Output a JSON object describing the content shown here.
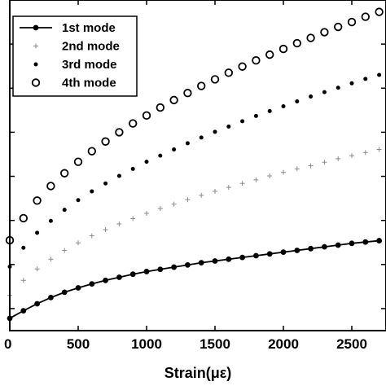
{
  "chart_data": {
    "type": "scatter",
    "title": "",
    "xlabel": "Strain(με)",
    "ylabel": "",
    "xlim": [
      0,
      2750
    ],
    "ylim": [
      0,
      7.5
    ],
    "xticks": [
      0,
      500,
      1000,
      1500,
      2000,
      2500
    ],
    "xtick_labels": [
      "0",
      "500",
      "1000",
      "1500",
      "2000",
      "2500"
    ],
    "yticks": [
      0.5,
      1.5,
      2.5,
      3.5,
      4.5,
      5.5,
      6.5
    ],
    "ytick_labels": [
      "",
      "",
      "",
      "",
      "",
      "",
      ""
    ],
    "grid": false,
    "legend_position": "top-left",
    "x": [
      0,
      100,
      200,
      300,
      400,
      500,
      600,
      700,
      800,
      900,
      1000,
      1100,
      1200,
      1300,
      1400,
      1500,
      1600,
      1700,
      1800,
      1900,
      2000,
      2100,
      2200,
      2300,
      2400,
      2500,
      2600,
      2700
    ],
    "series": [
      {
        "name": "1st mode",
        "marker": "filled-dot-line",
        "values": [
          0.28,
          0.45,
          0.61,
          0.75,
          0.87,
          0.97,
          1.06,
          1.14,
          1.21,
          1.28,
          1.34,
          1.39,
          1.44,
          1.49,
          1.54,
          1.58,
          1.62,
          1.66,
          1.7,
          1.74,
          1.78,
          1.82,
          1.86,
          1.9,
          1.94,
          1.98,
          2.01,
          2.04
        ]
      },
      {
        "name": "2nd mode",
        "marker": "plus",
        "values": [
          0.8,
          1.14,
          1.4,
          1.62,
          1.82,
          1.99,
          2.15,
          2.29,
          2.42,
          2.54,
          2.66,
          2.77,
          2.87,
          2.97,
          3.07,
          3.16,
          3.25,
          3.34,
          3.42,
          3.51,
          3.59,
          3.67,
          3.74,
          3.82,
          3.9,
          3.97,
          4.04,
          4.11
        ]
      },
      {
        "name": "3rd mode",
        "marker": "small-dot",
        "values": [
          1.45,
          1.88,
          2.22,
          2.49,
          2.74,
          2.96,
          3.16,
          3.34,
          3.51,
          3.67,
          3.83,
          3.97,
          4.11,
          4.25,
          4.38,
          4.51,
          4.63,
          4.75,
          4.87,
          4.98,
          5.09,
          5.2,
          5.31,
          5.41,
          5.51,
          5.61,
          5.71,
          5.8
        ]
      },
      {
        "name": "4th mode",
        "marker": "open-circle",
        "values": [
          2.05,
          2.55,
          2.95,
          3.28,
          3.57,
          3.83,
          4.07,
          4.29,
          4.5,
          4.7,
          4.88,
          5.06,
          5.23,
          5.39,
          5.55,
          5.7,
          5.85,
          5.99,
          6.13,
          6.26,
          6.39,
          6.52,
          6.64,
          6.77,
          6.89,
          7.0,
          7.12,
          7.23
        ]
      }
    ],
    "legend": [
      "1st mode",
      "2nd mode",
      "3rd mode",
      "4th mode"
    ],
    "colors": {
      "ink": "#000000",
      "background": "#ffffff",
      "plus_marker": "#8a8a8a"
    }
  }
}
